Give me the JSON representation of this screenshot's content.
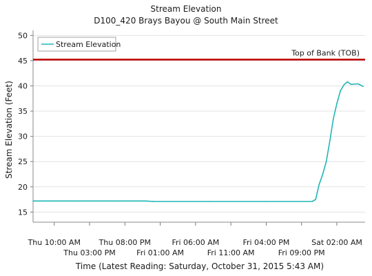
{
  "chart_data": {
    "type": "line",
    "title": "Stream Elevation",
    "subtitle": "D100_420 Brays Bayou @ South Main Street",
    "xlabel": "Time (Latest Reading: Saturday, October 31, 2015 5:43 AM)",
    "ylabel": "Stream Elevation (Feet)",
    "ylim": [
      13,
      51
    ],
    "yticks": [
      15,
      20,
      25,
      30,
      35,
      40,
      45,
      50
    ],
    "xlim": [
      "2015-10-29T07:00",
      "2015-10-31T06:00"
    ],
    "xticks": [
      {
        "label": "Thu 10:00 AM",
        "time": "2015-10-29T10:00",
        "row": 1
      },
      {
        "label": "Thu 03:00 PM",
        "time": "2015-10-29T15:00",
        "row": 2
      },
      {
        "label": "Thu 08:00 PM",
        "time": "2015-10-29T20:00",
        "row": 1
      },
      {
        "label": "Fri 01:00 AM",
        "time": "2015-10-30T01:00",
        "row": 2
      },
      {
        "label": "Fri 06:00 AM",
        "time": "2015-10-30T06:00",
        "row": 1
      },
      {
        "label": "Fri 11:00 AM",
        "time": "2015-10-30T11:00",
        "row": 2
      },
      {
        "label": "Fri 04:00 PM",
        "time": "2015-10-30T16:00",
        "row": 1
      },
      {
        "label": "Fri 09:00 PM",
        "time": "2015-10-30T21:00",
        "row": 2
      },
      {
        "label": "Sat 02:00 AM",
        "time": "2015-10-31T02:00",
        "row": 1
      }
    ],
    "grid": true,
    "legend": {
      "position": "top-left",
      "entries": [
        "Stream Elevation"
      ]
    },
    "series": [
      {
        "name": "Stream Elevation",
        "color": "#1fb5b5",
        "points": [
          [
            "2015-10-29T07:00",
            17.2
          ],
          [
            "2015-10-29T13:00",
            17.2
          ],
          [
            "2015-10-29T19:00",
            17.2
          ],
          [
            "2015-10-29T23:00",
            17.2
          ],
          [
            "2015-10-30T00:00",
            17.1
          ],
          [
            "2015-10-30T08:00",
            17.1
          ],
          [
            "2015-10-30T16:00",
            17.1
          ],
          [
            "2015-10-30T22:30",
            17.1
          ],
          [
            "2015-10-30T23:00",
            17.5
          ],
          [
            "2015-10-30T23:30",
            20.5
          ],
          [
            "2015-10-31T00:00",
            22.5
          ],
          [
            "2015-10-31T00:30",
            25.0
          ],
          [
            "2015-10-31T01:00",
            29.0
          ],
          [
            "2015-10-31T01:30",
            33.5
          ],
          [
            "2015-10-31T02:00",
            36.5
          ],
          [
            "2015-10-31T02:30",
            39.0
          ],
          [
            "2015-10-31T03:00",
            40.2
          ],
          [
            "2015-10-31T03:30",
            40.8
          ],
          [
            "2015-10-31T04:00",
            40.3
          ],
          [
            "2015-10-31T05:00",
            40.4
          ],
          [
            "2015-10-31T05:43",
            39.9
          ]
        ]
      }
    ],
    "reference_lines": [
      {
        "label": "Top of Bank (TOB)",
        "y": 45.2,
        "color": "#c00000"
      }
    ]
  }
}
